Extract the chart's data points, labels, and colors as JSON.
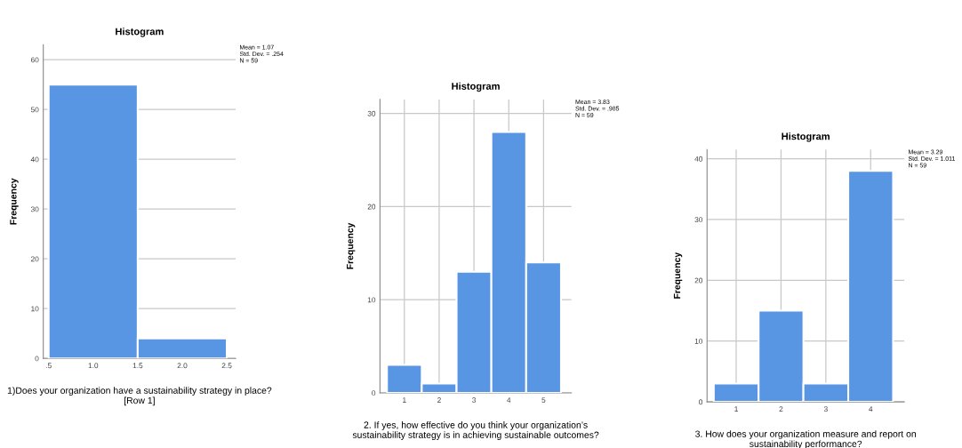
{
  "chart_data": [
    {
      "type": "histogram",
      "title": "Histogram",
      "xlabel": "1)Does your organization have a sustainability strategy in place? [Row 1]",
      "ylabel": "Frequency",
      "bins": [
        0.5,
        1.5,
        2.5
      ],
      "values": [
        55,
        4
      ],
      "color": "#5895e3",
      "xlim": [
        0.44,
        2.6
      ],
      "xticks": [
        {
          "value": 0.5,
          "label": ".5"
        },
        {
          "value": 1.0,
          "label": "1.0"
        },
        {
          "value": 1.5,
          "label": "1.5"
        },
        {
          "value": 2.0,
          "label": "2.0"
        },
        {
          "value": 2.5,
          "label": "2.5"
        }
      ],
      "ylim": [
        0,
        63
      ],
      "yticks": [
        0,
        10,
        20,
        30,
        40,
        50,
        60
      ],
      "grid": "y",
      "annotations": [
        "Mean = 1.07",
        "Std. Dev. = .254",
        "N = 59"
      ]
    },
    {
      "type": "histogram",
      "title": "Histogram",
      "xlabel": "2. If yes, how effective do you think your organization’s sustainability strategy is in achieving sustainable outcomes?",
      "ylabel": "Frequency",
      "bins": [
        0.5,
        1.5,
        2.5,
        3.5,
        4.5,
        5.5
      ],
      "values": [
        3,
        1,
        13,
        28,
        14
      ],
      "color": "#5895e3",
      "xlim": [
        0.3,
        5.8
      ],
      "xticks": [
        1,
        2,
        3,
        4,
        5
      ],
      "ylim": [
        0,
        31.5
      ],
      "yticks": [
        0,
        10,
        20,
        30
      ],
      "grid": true,
      "annotations": [
        "Mean = 3.83",
        "Std. Dev. = .985",
        "N = 59"
      ]
    },
    {
      "type": "histogram",
      "title": "Histogram",
      "xlabel": "3. How does your organization measure and report on sustainability performance?",
      "ylabel": "Frequency",
      "bins": [
        0.5,
        1.5,
        2.5,
        3.5,
        4.5
      ],
      "values": [
        3,
        15,
        3,
        38
      ],
      "color": "#5895e3",
      "xlim": [
        0.35,
        4.75
      ],
      "xticks": [
        1,
        2,
        3,
        4
      ],
      "ylim": [
        0,
        41.5
      ],
      "yticks": [
        0,
        10,
        20,
        30,
        40
      ],
      "grid": true,
      "annotations": [
        "Mean = 3.29",
        "Std. Dev. = 1.011",
        "N = 59"
      ]
    }
  ]
}
